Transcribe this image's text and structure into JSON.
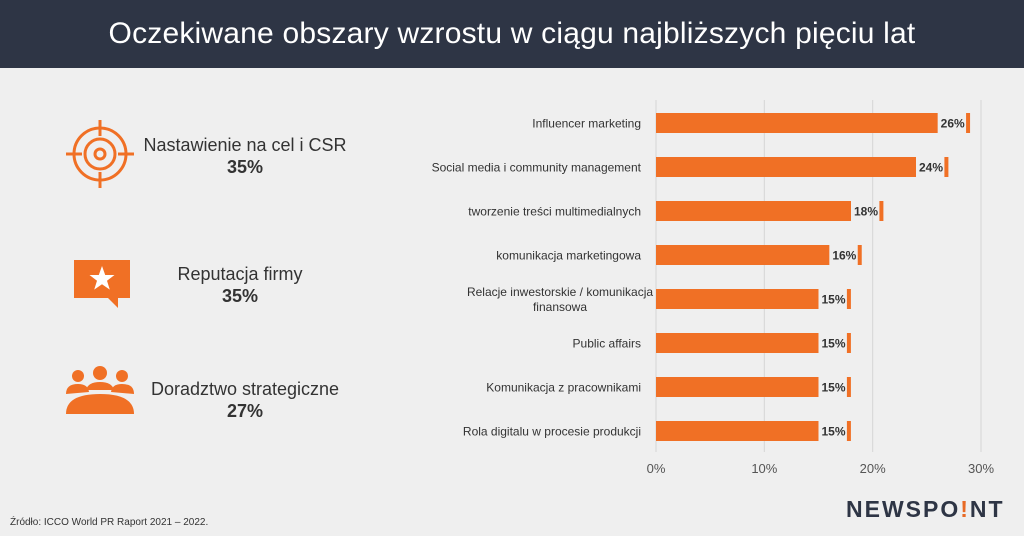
{
  "title": "Oczekiwane obszary wzrostu w ciągu najbliższych pięciu lat",
  "colors": {
    "header_bg": "#2e3545",
    "accent": "#f07025",
    "background": "#efefef"
  },
  "stats": [
    {
      "icon": "target-icon",
      "label": "Nastawienie na cel i CSR",
      "value": "35%"
    },
    {
      "icon": "star-speech-bubble-icon",
      "label": "Reputacja firmy",
      "value": "35%"
    },
    {
      "icon": "people-group-icon",
      "label": "Doradztwo strategiczne",
      "value": "27%"
    }
  ],
  "chart_data": {
    "type": "bar",
    "orientation": "horizontal",
    "categories": [
      "Influencer marketing",
      "Social media i community management",
      "tworzenie treści multimedialnych",
      "komunikacja marketingowa",
      "Relacje inwestorskie / komunikacja finansowa",
      "Public affairs",
      "Komunikacja z pracownikami",
      "Rola digitalu w procesie produkcji"
    ],
    "values": [
      26,
      24,
      18,
      16,
      15,
      15,
      15,
      15
    ],
    "data_labels": [
      "26%",
      "24%",
      "18%",
      "16%",
      "15%",
      "15%",
      "15%",
      "15%"
    ],
    "xlim": [
      0,
      30
    ],
    "xticks": [
      "0%",
      "10%",
      "20%",
      "30%"
    ],
    "grid": true
  },
  "source": "Źródło: ICCO World PR Raport 2021 – 2022.",
  "logo": {
    "text_before": "NEWSPO",
    "dot_char": "!",
    "text_after": "NT"
  }
}
